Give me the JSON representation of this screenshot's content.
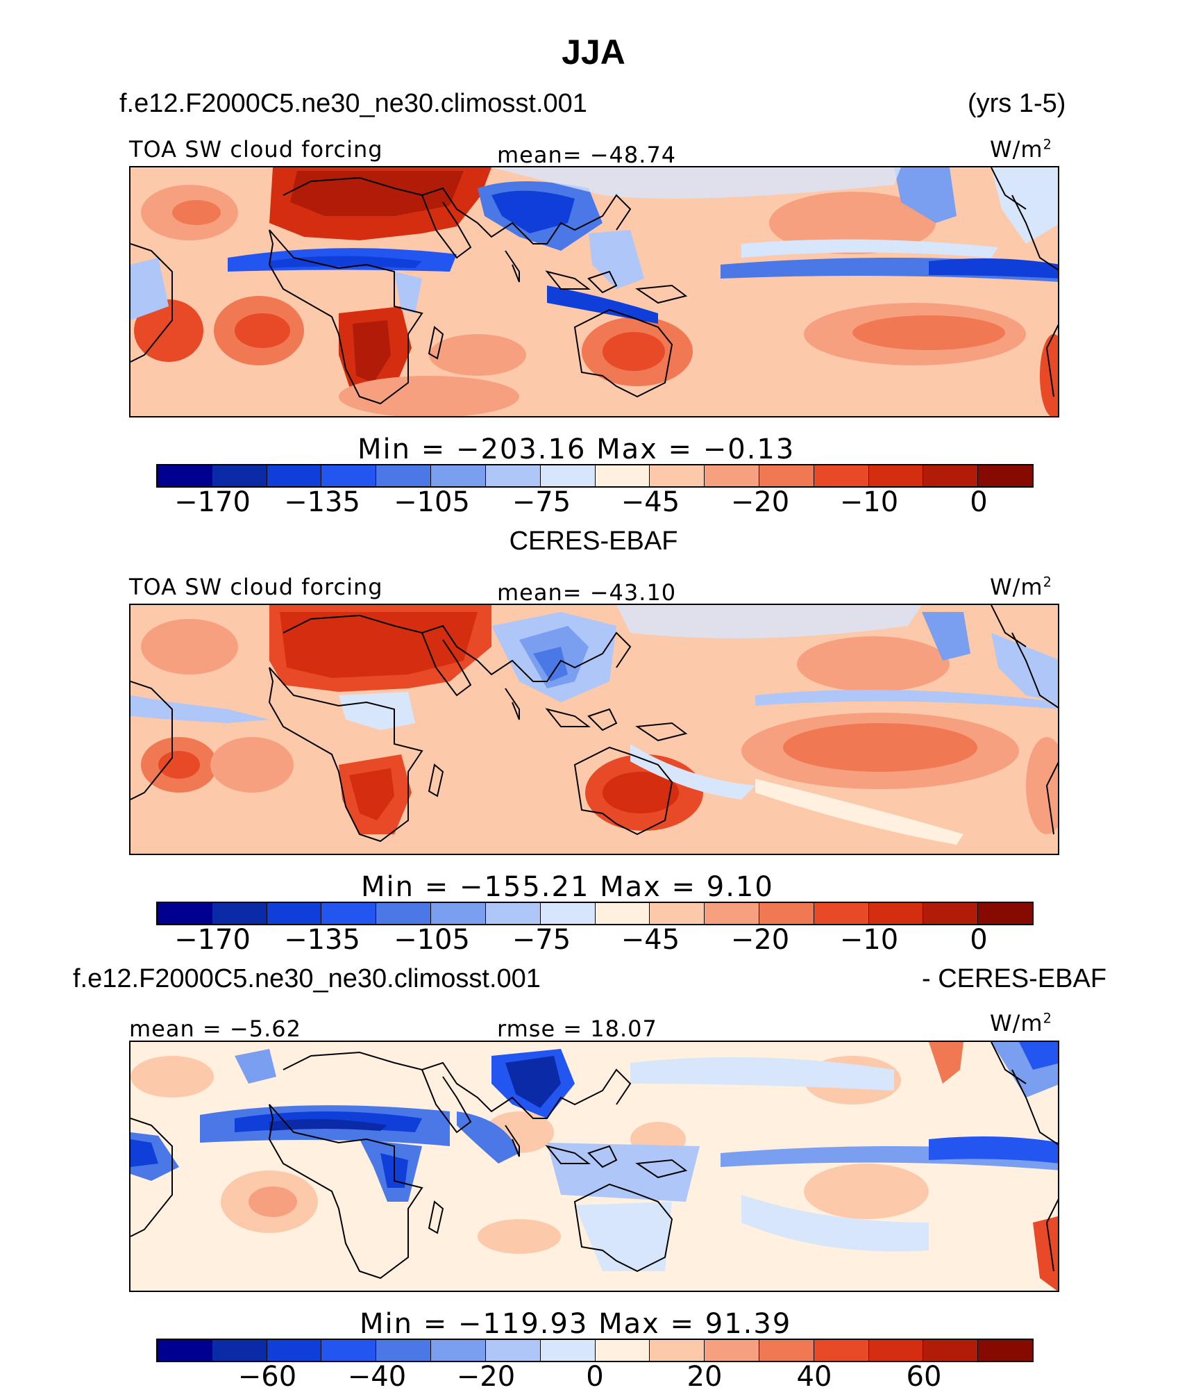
{
  "title": "JJA",
  "panels": [
    {
      "case": "f.e12.F2000C5.ne30_ne30.climosst.001",
      "years": "(yrs 1-5)",
      "left_label": "TOA SW cloud forcing",
      "center_label": "mean= −48.74",
      "units": "W/m",
      "units_sup": "2",
      "minmax": "Min  =  −203.16  Max  =    −0.13",
      "colorbar": {
        "ticks": [
          "−170",
          "−135",
          "−105",
          "−75",
          "−45",
          "−20",
          "−10",
          "0"
        ],
        "colors": [
          "#000090",
          "#0a2aa8",
          "#0f3fd8",
          "#2355f0",
          "#4a78e6",
          "#7a9ff0",
          "#aec6f8",
          "#d7e6fb",
          "#fff0e0",
          "#fcc9ab",
          "#f7a07f",
          "#f07852",
          "#e84a27",
          "#d42d0f",
          "#b01c08",
          "#860a00"
        ]
      }
    },
    {
      "case": "CERES-EBAF",
      "left_label": "TOA SW cloud forcing",
      "center_label": "mean= −43.10",
      "units": "W/m",
      "units_sup": "2",
      "minmax": "Min  =  −155.21  Max  =     9.10",
      "colorbar": {
        "ticks": [
          "−170",
          "−135",
          "−105",
          "−75",
          "−45",
          "−20",
          "−10",
          "0"
        ],
        "colors": [
          "#000090",
          "#0a2aa8",
          "#0f3fd8",
          "#2355f0",
          "#4a78e6",
          "#7a9ff0",
          "#aec6f8",
          "#d7e6fb",
          "#fff0e0",
          "#fcc9ab",
          "#f7a07f",
          "#f07852",
          "#e84a27",
          "#d42d0f",
          "#b01c08",
          "#860a00"
        ]
      }
    },
    {
      "case": "f.e12.F2000C5.ne30_ne30.climosst.001",
      "case_suffix": "- CERES-EBAF",
      "left_label": "mean =   −5.62",
      "center_label": "rmse =   18.07",
      "units": "W/m",
      "units_sup": "2",
      "minmax": "Min  =  −119.93  Max  =    91.39",
      "colorbar": {
        "ticks": [
          "−60",
          "−40",
          "−20",
          "0",
          "20",
          "40",
          "60"
        ],
        "colors": [
          "#000090",
          "#0a2aa8",
          "#0f3fd8",
          "#2355f0",
          "#4a78e6",
          "#7a9ff0",
          "#aec6f8",
          "#d7e6fb",
          "#fff0e0",
          "#fcc9ab",
          "#f7a07f",
          "#f07852",
          "#e84a27",
          "#d42d0f",
          "#b01c08",
          "#860a00"
        ]
      }
    }
  ],
  "chart_data": [
    {
      "type": "heatmap",
      "title": "JJA",
      "subtitle": "f.e12.F2000C5.ne30_ne30.climosst.001",
      "variable": "TOA SW cloud forcing",
      "units": "W/m2",
      "mean": -48.74,
      "min": -203.16,
      "max": -0.13,
      "colorbar_ticks": [
        -170,
        -135,
        -105,
        -75,
        -45,
        -20,
        -10,
        0
      ]
    },
    {
      "type": "heatmap",
      "subtitle": "CERES-EBAF",
      "variable": "TOA SW cloud forcing",
      "units": "W/m2",
      "mean": -43.1,
      "min": -155.21,
      "max": 9.1,
      "colorbar_ticks": [
        -170,
        -135,
        -105,
        -75,
        -45,
        -20,
        -10,
        0
      ]
    },
    {
      "type": "heatmap",
      "subtitle": "f.e12.F2000C5.ne30_ne30.climosst.001 - CERES-EBAF",
      "units": "W/m2",
      "mean": -5.62,
      "rmse": 18.07,
      "min": -119.93,
      "max": 91.39,
      "colorbar_ticks": [
        -60,
        -40,
        -20,
        0,
        20,
        40,
        60
      ]
    }
  ]
}
